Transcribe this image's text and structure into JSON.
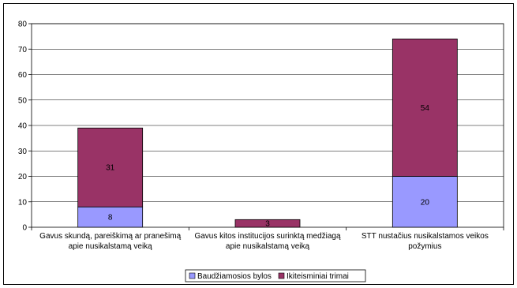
{
  "chart_data": {
    "type": "bar",
    "stacked": true,
    "categories": [
      [
        "Gavus skundą, pareiškimą ar pranešimą",
        "apie nusikalstamą veiką"
      ],
      [
        "Gavus kitos institucijos surinktą medžiagą",
        "apie nusikalstamą veiką"
      ],
      [
        "STT nustačius nusikalstamos veikos",
        "požymius"
      ]
    ],
    "series": [
      {
        "name": "Baudžiamosios bylos",
        "values": [
          8,
          0,
          20
        ],
        "color": "#9999ff"
      },
      {
        "name": "Ikiteisminiai trimai",
        "values": [
          31,
          3,
          54
        ],
        "color": "#993366"
      }
    ],
    "data_labels": [
      [
        "8",
        "",
        "20"
      ],
      [
        "31",
        "3",
        "54"
      ]
    ],
    "ylim": [
      0,
      80
    ],
    "yticks": [
      0,
      10,
      20,
      30,
      40,
      50,
      60,
      70,
      80
    ],
    "grid": true,
    "legend": "bottom",
    "title": "",
    "xlabel": "",
    "ylabel": ""
  }
}
